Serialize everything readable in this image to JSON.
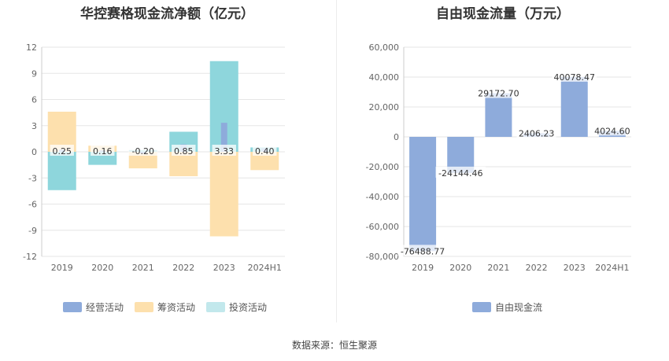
{
  "source_label": "数据来源：恒生聚源",
  "chart_data": [
    {
      "type": "bar",
      "title": "华控赛格现金流净额（亿元）",
      "categories": [
        "2019",
        "2020",
        "2021",
        "2022",
        "2023",
        "2024H1"
      ],
      "ylim": [
        -12,
        12
      ],
      "yticks": [
        12,
        9,
        6,
        3,
        0,
        -3,
        -6,
        -9,
        -12
      ],
      "grid": true,
      "legend_position": "bottom",
      "series": [
        {
          "name": "经营活动",
          "color": "#8eabdb",
          "values": [
            0.25,
            0.16,
            -0.2,
            0.85,
            3.33,
            0.4
          ],
          "labels": [
            "0.25",
            "0.16",
            "-0.20",
            "0.85",
            "3.33",
            "0.40"
          ]
        },
        {
          "name": "筹资活动",
          "color": "#fde0ad",
          "values": [
            4.6,
            0.7,
            -1.9,
            -2.8,
            -9.7,
            -2.1
          ]
        },
        {
          "name": "投资活动",
          "color": "#8ed6dc",
          "values": [
            -4.4,
            -1.5,
            0.2,
            2.3,
            10.4,
            0.5
          ]
        }
      ]
    },
    {
      "type": "bar",
      "title": "自由现金流量（万元）",
      "categories": [
        "2019",
        "2020",
        "2021",
        "2022",
        "2023",
        "2024H1"
      ],
      "ylim": [
        -80000,
        60000
      ],
      "yticks": [
        60000,
        40000,
        20000,
        0,
        -20000,
        -40000,
        -60000,
        -80000
      ],
      "ytick_labels": [
        "60,000",
        "40,000",
        "20,000",
        "0",
        "-20,000",
        "-40,000",
        "-60,000",
        "-80,000"
      ],
      "grid": true,
      "legend_position": "bottom",
      "series": [
        {
          "name": "自由现金流",
          "color": "#8eabdb",
          "values": [
            -76488.77,
            -24144.46,
            29172.7,
            2406.23,
            40078.47,
            4024.6
          ],
          "labels": [
            "-76488.77",
            "-24144.46",
            "29172.70",
            "2406.23",
            "40078.47",
            "4024.60"
          ]
        }
      ]
    }
  ]
}
